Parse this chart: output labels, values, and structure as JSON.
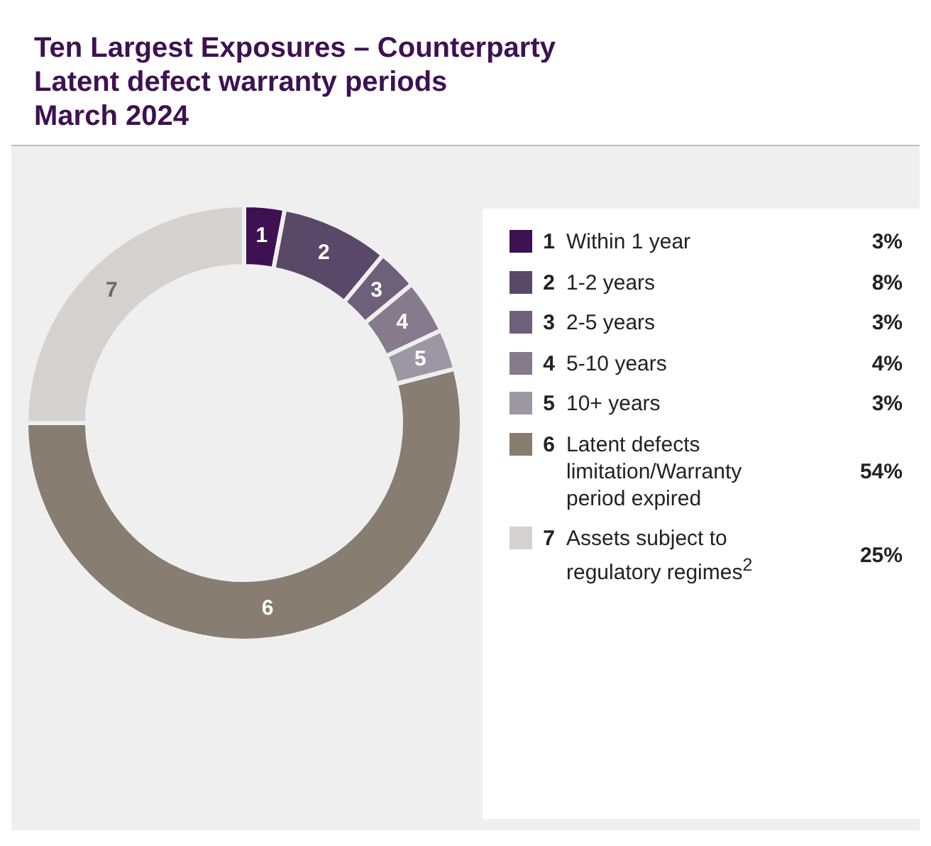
{
  "chart_data": {
    "type": "donut",
    "title": "Ten Largest Exposures – Counterparty",
    "subtitle": "Latent defect warranty periods\nMarch 2024",
    "categories": [
      "Within 1 year",
      "1-2 years",
      "2-5 years",
      "5-10 years",
      "10+ years",
      "Latent defects limitation/Warranty period expired",
      "Assets subject to regulatory regimes$^{2}$"
    ],
    "values": [
      3,
      8,
      3,
      4,
      3,
      54,
      25
    ],
    "colors": [
      "#3d1152",
      "#5a4868",
      "#6e5f7a",
      "#857b8c",
      "#9d97a4",
      "#877d70",
      "#d3d2d1"
    ],
    "value_labels": [
      "3%",
      "8%",
      "3%",
      "4%",
      "3%",
      "54%",
      "25%"
    ],
    "legend": "right",
    "annotations": [
      {
        "text": "1",
        "x": "Within 1 year"
      },
      {
        "text": "2",
        "x": "1-2 years"
      },
      {
        "text": "3",
        "x": "2-5 years"
      },
      {
        "text": "4",
        "x": "5-10 years"
      },
      {
        "text": "5",
        "x": "10+ years"
      },
      {
        "text": "6",
        "x": "Latent defects limitation/Warranty period expired"
      },
      {
        "text": "7",
        "x": "Assets subject to regulatory regimes$^{2}$"
      }
    ]
  }
}
